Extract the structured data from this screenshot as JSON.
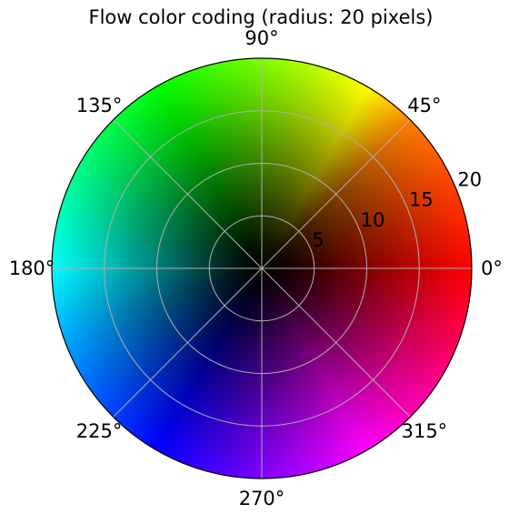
{
  "chart_data": {
    "type": "heatmap",
    "projection": "polar",
    "title": "Flow color coding (radius: 20 pixels)",
    "angle_tick_labels": [
      "0°",
      "45°",
      "90°",
      "135°",
      "180°",
      "225°",
      "270°",
      "315°"
    ],
    "angle_ticks_deg": [
      0,
      45,
      90,
      135,
      180,
      225,
      270,
      315
    ],
    "radial_tick_labels": [
      "5",
      "10",
      "15",
      "20"
    ],
    "radial_ticks": [
      5,
      10,
      15,
      20
    ],
    "rlim": [
      0,
      20
    ],
    "radial_label_angle_deg": 22.5,
    "grid": true,
    "hue_stops": [
      {
        "angle": 0,
        "color": "#ff0000"
      },
      {
        "angle": 45,
        "color": "#ff8000"
      },
      {
        "angle": 60,
        "color": "#ffff00"
      },
      {
        "angle": 90,
        "color": "#80ff00"
      },
      {
        "angle": 120,
        "color": "#00ff00"
      },
      {
        "angle": 180,
        "color": "#00ffff"
      },
      {
        "angle": 240,
        "color": "#0000ff"
      },
      {
        "angle": 270,
        "color": "#8000ff"
      },
      {
        "angle": 300,
        "color": "#ff00ff"
      },
      {
        "angle": 360,
        "color": "#ff0000"
      }
    ],
    "colors": {
      "grid": "#b0b0b0",
      "frame": "#000000",
      "center": "#000000"
    }
  }
}
